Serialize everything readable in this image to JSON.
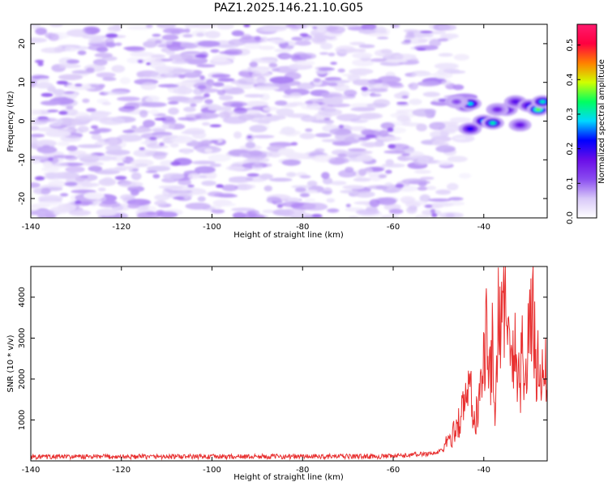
{
  "title": "PAZ1.2025.146.21.10.G05",
  "chart_data": [
    {
      "type": "heatmap",
      "xlabel": "Height of straight line (km)",
      "ylabel": "Frequency (Hz)",
      "xlim": [
        -140,
        -26
      ],
      "ylim": [
        -25,
        25
      ],
      "xticks": [
        -140,
        -120,
        -100,
        -80,
        -60,
        -40
      ],
      "yticks": [
        -20,
        -10,
        0,
        10,
        20
      ],
      "colorbar": {
        "label": "Normalized spectral amplitude",
        "range": [
          0,
          0.56
        ],
        "ticks": [
          0.0,
          0.1,
          0.2,
          0.3,
          0.4,
          0.5
        ],
        "colors": [
          "#ffffff",
          "#d8c8f8",
          "#8a4cf0",
          "#6a0ee8",
          "#0000ff",
          "#00d8ff",
          "#00ff60",
          "#d0ff00",
          "#ff8000",
          "#ff0040",
          "#ff1a6e"
        ]
      },
      "noise_region": {
        "x": [
          -140,
          -48
        ],
        "amplitude": [
          0.0,
          0.1
        ]
      },
      "signal_blobs": [
        {
          "x": -44,
          "y": 4,
          "value": 0.25
        },
        {
          "x": -43,
          "y": 4.5,
          "value": 0.29
        },
        {
          "x": -40,
          "y": 0,
          "value": 0.28
        },
        {
          "x": -38,
          "y": -0.5,
          "value": 0.31
        },
        {
          "x": -43,
          "y": -2,
          "value": 0.22
        },
        {
          "x": -35,
          "y": 3,
          "value": 0.2
        },
        {
          "x": -33,
          "y": 5,
          "value": 0.18
        },
        {
          "x": -30,
          "y": 4,
          "value": 0.22
        },
        {
          "x": -28,
          "y": 3,
          "value": 0.36
        },
        {
          "x": -27,
          "y": 5,
          "value": 0.3
        },
        {
          "x": -32,
          "y": -1,
          "value": 0.17
        },
        {
          "x": -46,
          "y": 5,
          "value": 0.12
        },
        {
          "x": -37,
          "y": 3,
          "value": 0.15
        }
      ]
    },
    {
      "type": "line",
      "xlabel": "Height of straight line (km)",
      "ylabel": "SNR (10 * v/v)",
      "xlim": [
        -140,
        -26
      ],
      "ylim": [
        0,
        4750
      ],
      "xticks": [
        -140,
        -120,
        -100,
        -80,
        -60,
        -40
      ],
      "yticks": [
        1000,
        2000,
        3000,
        4000
      ],
      "color": "#e83030",
      "x": [
        -140,
        -60,
        -50,
        -47,
        -45,
        -44,
        -43,
        -42,
        -41,
        -40,
        -39.5,
        -39,
        -38,
        -37.5,
        -37,
        -36,
        -35.2,
        -35,
        -34.5,
        -34,
        -33,
        -32,
        -31.5,
        -31,
        -30,
        -29,
        -28.5,
        -28,
        -27,
        -26
      ],
      "y": [
        100,
        110,
        200,
        600,
        1100,
        1500,
        1900,
        900,
        1400,
        2500,
        3280,
        1700,
        3000,
        1300,
        3200,
        4000,
        4700,
        3500,
        3000,
        2000,
        3100,
        1900,
        2600,
        1800,
        3100,
        3550,
        2400,
        2300,
        2050,
        2150
      ]
    }
  ]
}
